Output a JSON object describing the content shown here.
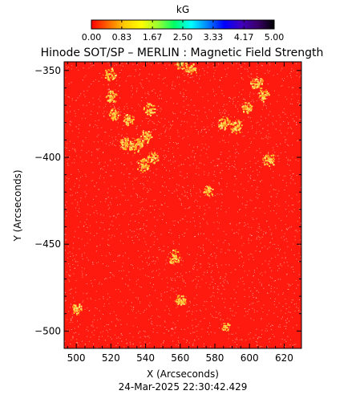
{
  "chart_data": {
    "type": "heatmap",
    "title": "Hinode SOT/SP – MERLIN : Magnetic Field Strength",
    "xlabel": "X (Arcseconds)",
    "ylabel": "Y (Arcseconds)",
    "xlim": [
      493,
      630
    ],
    "ylim": [
      -510,
      -345
    ],
    "x_ticks": [
      500,
      520,
      540,
      560,
      580,
      600,
      620
    ],
    "x_tick_labels": [
      "500",
      "520",
      "540",
      "560",
      "580",
      "600",
      "620"
    ],
    "y_ticks": [
      -350,
      -400,
      -450,
      -500
    ],
    "y_tick_labels": [
      "−350",
      "−400",
      "−450",
      "−500"
    ],
    "colorbar": {
      "label": "kG",
      "range": [
        0,
        5
      ],
      "ticks": [
        0.0,
        0.83,
        1.67,
        2.5,
        3.33,
        4.17,
        5.0
      ],
      "tick_labels": [
        "0.00",
        "0.83",
        "1.67",
        "2.50",
        "3.33",
        "4.17",
        "5.00"
      ],
      "colors": [
        "#ff0000",
        "#ff6600",
        "#ffcc00",
        "#ffff00",
        "#99ff33",
        "#00ff66",
        "#00ffff",
        "#0080ff",
        "#0000ff",
        "#4000c0",
        "#3a006a",
        "#000000"
      ]
    },
    "background_color": "#ff1a10",
    "noise_color": "#ffe08a",
    "plage_color": "#ffd23a",
    "plage_regions": [
      {
        "x": 519,
        "y": -352,
        "intensity": 0.5
      },
      {
        "x": 520,
        "y": -365,
        "intensity": 0.4
      },
      {
        "x": 522,
        "y": -375,
        "intensity": 0.4
      },
      {
        "x": 530,
        "y": -378,
        "intensity": 0.3
      },
      {
        "x": 542,
        "y": -372,
        "intensity": 0.4
      },
      {
        "x": 534,
        "y": -393,
        "intensity": 0.6
      },
      {
        "x": 540,
        "y": -388,
        "intensity": 0.5
      },
      {
        "x": 528,
        "y": -392,
        "intensity": 0.4
      },
      {
        "x": 544,
        "y": -400,
        "intensity": 0.4
      },
      {
        "x": 538,
        "y": -404,
        "intensity": 0.5
      },
      {
        "x": 560,
        "y": -345,
        "intensity": 0.5
      },
      {
        "x": 566,
        "y": -349,
        "intensity": 0.4
      },
      {
        "x": 585,
        "y": -380,
        "intensity": 0.5
      },
      {
        "x": 592,
        "y": -382,
        "intensity": 0.5
      },
      {
        "x": 598,
        "y": -371,
        "intensity": 0.3
      },
      {
        "x": 604,
        "y": -357,
        "intensity": 0.5
      },
      {
        "x": 608,
        "y": -364,
        "intensity": 0.4
      },
      {
        "x": 611,
        "y": -401,
        "intensity": 0.5
      },
      {
        "x": 576,
        "y": -419,
        "intensity": 0.3
      },
      {
        "x": 556,
        "y": -457,
        "intensity": 0.5
      },
      {
        "x": 560,
        "y": -482,
        "intensity": 0.3
      },
      {
        "x": 500,
        "y": -487,
        "intensity": 0.3
      },
      {
        "x": 586,
        "y": -497,
        "intensity": 0.2
      }
    ],
    "timestamp": "24-Mar-2025 22:30:42.429"
  }
}
